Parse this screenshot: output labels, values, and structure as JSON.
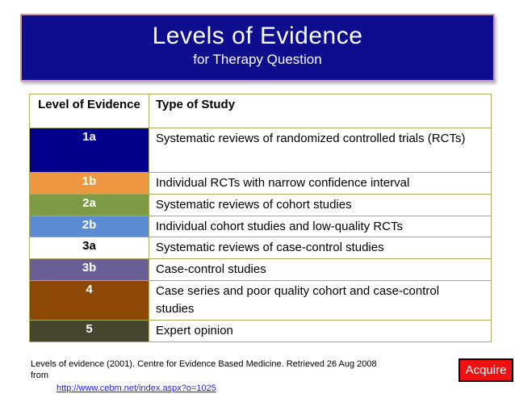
{
  "slide": {
    "title": "Levels of Evidence",
    "subtitle": "for Therapy Question",
    "header_bg": "#0d0d8e",
    "header_border_color": "#c995ad"
  },
  "table": {
    "border_color": "#abab60",
    "headers": [
      "Level of Evidence",
      "Type of Study"
    ],
    "rows": [
      {
        "level": "1a",
        "study": "Systematic reviews of randomized controlled trials (RCTs)",
        "color": "#00008b",
        "text_color": "#ffffff"
      },
      {
        "level": "1b",
        "study": "Individual RCTs with narrow confidence interval",
        "color": "#ed9740",
        "text_color": "#ffffff"
      },
      {
        "level": "2a",
        "study": "Systematic reviews of cohort studies",
        "color": "#7d9b44",
        "text_color": "#ffffff"
      },
      {
        "level": "2b",
        "study": "Individual cohort studies and low-quality RCTs",
        "color": "#5a8bd3",
        "text_color": "#ffffff"
      },
      {
        "level": "3a",
        "study": "Systematic reviews of case-control studies",
        "color": "#ffffff",
        "text_color": "#000000"
      },
      {
        "level": "3b",
        "study": "Case-control studies",
        "color": "#6a5e96",
        "text_color": "#ffffff"
      },
      {
        "level": "4",
        "study": "Case series and poor quality cohort and case-control studies",
        "color": "#8c4804",
        "text_color": "#ffffff"
      },
      {
        "level": "5",
        "study": "Expert opinion",
        "color": "#45462e",
        "text_color": "#ffffff"
      }
    ]
  },
  "footer": {
    "citation": "Levels of evidence (2001). Centre for Evidence Based Medicine. Retrieved 26 Aug 2008 from",
    "link": "http://www.cebm.net/index.aspx?o=1025",
    "link_color": "#2323c8"
  },
  "acquire_button": {
    "label": "Acquire",
    "bg": "#ee1111"
  }
}
